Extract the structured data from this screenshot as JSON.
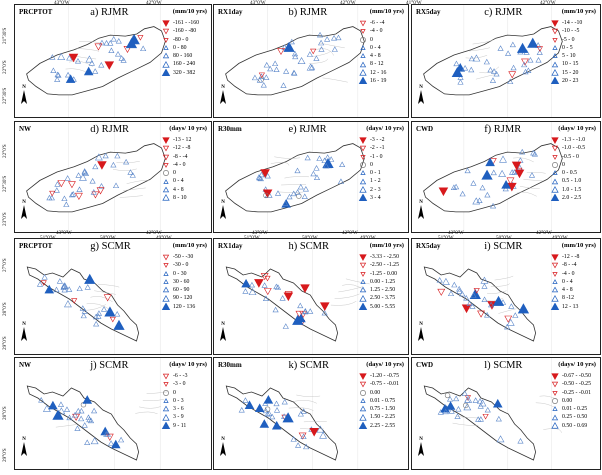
{
  "colors": {
    "neg": "#d7191c",
    "pos": "#1f5fbf",
    "neutral": "#777777",
    "border": "#222222"
  },
  "top_axis": {
    "col1": [
      "43°0'W",
      "42°0'W"
    ],
    "col2": [
      "43°0'W",
      "42°0'W"
    ],
    "col3": [
      "41°0'W",
      "42°0'W"
    ]
  },
  "top_lat": [
    "22°0'S",
    "22°30'S",
    "23°0'S"
  ],
  "top_lat_left": [
    "21°30'S",
    "22°0'S",
    "22°30'S"
  ],
  "mid_axis": {
    "col1": [
      "43°0'W",
      "42°0'W"
    ],
    "col2": [
      "43°0'W",
      "42°0'W"
    ],
    "col3": [
      "43°0'W",
      "42°0'W"
    ]
  },
  "sc_axis": {
    "col1": [
      "51°0'W",
      "50°0'W",
      "49°0'W"
    ],
    "col2": [
      "51°0'W",
      "50°0'W",
      "49°0'W"
    ],
    "col3": [
      "51°0'W",
      "50°0'W",
      "49°0'W"
    ]
  },
  "sc_lat": [
    "27°0'S",
    "28°0'S",
    "29°0'S"
  ],
  "sc_lat2": [
    "28°0'S",
    "29°0'S"
  ],
  "north": "N",
  "panels": [
    {
      "id": "a",
      "name": "PRCPTOT",
      "title": "a) RJMR",
      "unit": "(mm/10 yrs)",
      "legend": [
        {
          "t": "-161 - -160",
          "s": "dn3"
        },
        {
          "t": "-160 - -80",
          "s": "dn2"
        },
        {
          "t": "-80 - 0",
          "s": "dn1"
        },
        {
          "t": "0 - 80",
          "s": "up1"
        },
        {
          "t": "80 - 160",
          "s": "up2"
        },
        {
          "t": "160 - 240",
          "s": "up3"
        },
        {
          "t": "320 - 382",
          "s": "up4"
        }
      ]
    },
    {
      "id": "b",
      "name": "RX1day",
      "title": "b) RJMR",
      "unit": "(mm/10 yrs)",
      "legend": [
        {
          "t": "-6 - -4",
          "s": "dn2"
        },
        {
          "t": "-4 - 0",
          "s": "dn1"
        },
        {
          "t": "0",
          "s": "circ"
        },
        {
          "t": "0 - 4",
          "s": "up1"
        },
        {
          "t": "4 - 8",
          "s": "up1"
        },
        {
          "t": "8 - 12",
          "s": "up2"
        },
        {
          "t": "12 - 16",
          "s": "up3"
        },
        {
          "t": "16 - 19",
          "s": "up4"
        }
      ]
    },
    {
      "id": "c",
      "name": "RX5day",
      "title": "c) RJMR",
      "unit": "(mm/10 yrs)",
      "legend": [
        {
          "t": "-14 - -10",
          "s": "dn3"
        },
        {
          "t": "-10 - -5",
          "s": "dn2"
        },
        {
          "t": "-5 - 0",
          "s": "dn1"
        },
        {
          "t": "0 - 5",
          "s": "up1"
        },
        {
          "t": "5 - 10",
          "s": "up1"
        },
        {
          "t": "10 - 15",
          "s": "up2"
        },
        {
          "t": "15 - 20",
          "s": "up3"
        },
        {
          "t": "20 - 23",
          "s": "up4"
        }
      ]
    },
    {
      "id": "d",
      "name": "NW",
      "title": "d) RJMR",
      "unit": "(days/ 10 yrs)",
      "legend": [
        {
          "t": "-13 - 12",
          "s": "dn3"
        },
        {
          "t": "-12 - -8",
          "s": "dn2"
        },
        {
          "t": "-8 - -4",
          "s": "dn2"
        },
        {
          "t": "-4 - 0",
          "s": "dn1"
        },
        {
          "t": "0",
          "s": "circ"
        },
        {
          "t": "0 - 4",
          "s": "up1"
        },
        {
          "t": "4 - 8",
          "s": "up2"
        },
        {
          "t": "8 - 10",
          "s": "up3"
        }
      ]
    },
    {
      "id": "e",
      "name": "R30mm",
      "title": "e) RJMR",
      "unit": "(days/ 10 yrs)",
      "legend": [
        {
          "t": "-3 - -2",
          "s": "dn3"
        },
        {
          "t": "-2 - -1",
          "s": "dn2"
        },
        {
          "t": "-1 - 0",
          "s": "dn1"
        },
        {
          "t": "0",
          "s": "circ"
        },
        {
          "t": "0 - 1",
          "s": "up1"
        },
        {
          "t": "1 - 2",
          "s": "up2"
        },
        {
          "t": "2 - 3",
          "s": "up3"
        },
        {
          "t": "3 - 4",
          "s": "up4"
        }
      ]
    },
    {
      "id": "f",
      "name": "CWD",
      "title": "f) RJMR",
      "unit": "(days/ 10 yrs)",
      "legend": [
        {
          "t": "-1.3 - -1.0",
          "s": "dn3"
        },
        {
          "t": "-1.0 - -0.5",
          "s": "dn2"
        },
        {
          "t": "-0.5 - 0",
          "s": "dn1"
        },
        {
          "t": "0",
          "s": "circ"
        },
        {
          "t": "0 - 0.5",
          "s": "up1"
        },
        {
          "t": "0.5 - 1.0",
          "s": "up2"
        },
        {
          "t": "1.0 - 1.5",
          "s": "up3"
        },
        {
          "t": "2.0 - 2.5",
          "s": "up4"
        }
      ]
    },
    {
      "id": "g",
      "name": "PRCPTOT",
      "title": "g) SCMR",
      "unit": "(mm/10 yrs)",
      "legend": [
        {
          "t": "-50 - -30",
          "s": "dn2"
        },
        {
          "t": "-30 - 0",
          "s": "dn1"
        },
        {
          "t": "0 - 30",
          "s": "up1"
        },
        {
          "t": "30 - 60",
          "s": "up1"
        },
        {
          "t": "60 - 90",
          "s": "up2"
        },
        {
          "t": "90 - 120",
          "s": "up3"
        },
        {
          "t": "120 - 136",
          "s": "up4"
        }
      ]
    },
    {
      "id": "h",
      "name": "RX1day",
      "title": "h) SCMR",
      "unit": "(mm/10 yrs)",
      "legend": [
        {
          "t": "-3.33 - -2.50",
          "s": "dn3"
        },
        {
          "t": "-2.50 - -1.25",
          "s": "dn2"
        },
        {
          "t": "-1.25 - 0.00",
          "s": "dn1"
        },
        {
          "t": "0.00 - 1.25",
          "s": "up1"
        },
        {
          "t": "1.25 - 2.50",
          "s": "up2"
        },
        {
          "t": "2.50 - 3.75",
          "s": "up3"
        },
        {
          "t": "5.00 - 5.55",
          "s": "up4"
        }
      ]
    },
    {
      "id": "i",
      "name": "RX5day",
      "title": "i) SCMR",
      "unit": "(mm/10 yrs)",
      "legend": [
        {
          "t": "-12 - -8",
          "s": "dn3"
        },
        {
          "t": "-8 - -4",
          "s": "dn2"
        },
        {
          "t": "-4 - 0",
          "s": "dn1"
        },
        {
          "t": "0 - 4",
          "s": "up1"
        },
        {
          "t": "4 - 8",
          "s": "up2"
        },
        {
          "t": "8 -12",
          "s": "up3"
        },
        {
          "t": "12 - 13",
          "s": "up4"
        }
      ]
    },
    {
      "id": "j",
      "name": "NW",
      "title": "j) SCMR",
      "unit": "(days/ 10 yrs)",
      "legend": [
        {
          "t": "-6 - -3",
          "s": "dn2"
        },
        {
          "t": "-3 - 0",
          "s": "dn1"
        },
        {
          "t": "0",
          "s": "circ"
        },
        {
          "t": "0 - 3",
          "s": "up1"
        },
        {
          "t": "3 - 6",
          "s": "up2"
        },
        {
          "t": "3 - 9",
          "s": "up3"
        },
        {
          "t": "9 - 11",
          "s": "up4"
        }
      ]
    },
    {
      "id": "k",
      "name": "R30mm",
      "title": "k) SCMR",
      "unit": "(days/ 10 yrs)",
      "legend": [
        {
          "t": "-1.20 - -0.75",
          "s": "dn3"
        },
        {
          "t": "-0.75 - -0.01",
          "s": "dn2"
        },
        {
          "t": "0.00",
          "s": "circ"
        },
        {
          "t": "0.01 - 0.75",
          "s": "up1"
        },
        {
          "t": "0.75 - 1.50",
          "s": "up2"
        },
        {
          "t": "1.50 - 2.25",
          "s": "up3"
        },
        {
          "t": "2.25 - 2.55",
          "s": "up4"
        }
      ]
    },
    {
      "id": "l",
      "name": "CWD",
      "title": "l) SCMR",
      "unit": "(days/ 10 yrs)",
      "legend": [
        {
          "t": "-0.67 - -0.50",
          "s": "dn3"
        },
        {
          "t": "-0.50 - -0.25",
          "s": "dn2"
        },
        {
          "t": "-0.25 - -0.01",
          "s": "dn1"
        },
        {
          "t": "0.00",
          "s": "circ"
        },
        {
          "t": "0.01 - 0.25",
          "s": "up1"
        },
        {
          "t": "0.25 - 0.50",
          "s": "up2"
        },
        {
          "t": "0.50 - 0.69",
          "s": "up3"
        }
      ]
    }
  ]
}
